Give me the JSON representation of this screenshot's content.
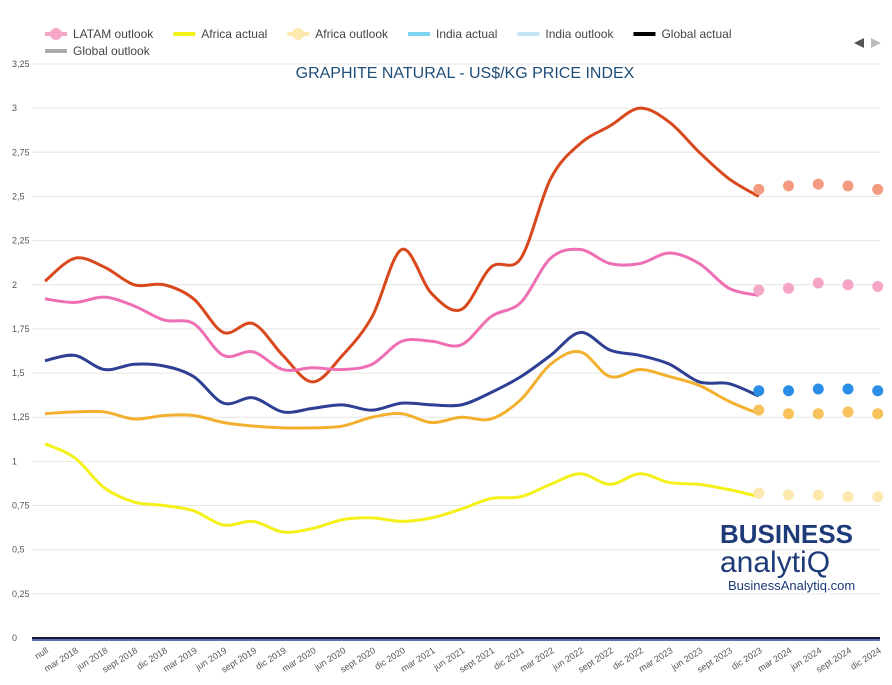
{
  "chart_data": {
    "type": "line",
    "title": "GRAPHITE NATURAL - US$/KG PRICE INDEX",
    "categories": [
      "null",
      "mar 2018",
      "jun 2018",
      "sept 2018",
      "dic 2018",
      "mar 2019",
      "jun 2019",
      "sept 2019",
      "dic 2019",
      "mar 2020",
      "jun 2020",
      "sept 2020",
      "dic 2020",
      "mar 2021",
      "jun 2021",
      "sept 2021",
      "dic 2021",
      "mar 2022",
      "jun 2022",
      "sept 2022",
      "dic 2022",
      "mar 2023",
      "jun 2023",
      "sept 2023",
      "dic 2023",
      "mar 2024",
      "jun 2024",
      "sept 2024",
      "dic 2024"
    ],
    "ylim": [
      0,
      3.25
    ],
    "yticks": [
      0,
      {
        "value": 0.25,
        "label": "0,25"
      },
      {
        "value": 0.5,
        "label": "0,5"
      },
      {
        "value": 0.75,
        "label": "0,75"
      },
      1,
      {
        "value": 1.25,
        "label": "1,25"
      },
      {
        "value": 1.5,
        "label": "1,5"
      },
      {
        "value": 1.75,
        "label": "1,75"
      },
      2,
      {
        "value": 2.25,
        "label": "2,25"
      },
      {
        "value": 2.5,
        "label": "2,5"
      },
      {
        "value": 2.75,
        "label": "2,75"
      },
      3,
      {
        "value": 3.25,
        "label": "3,25"
      }
    ],
    "grid": true,
    "legend": "top-left",
    "series": [
      {
        "color": "#d9481c",
        "style": "line",
        "values": [
          2.02,
          2.15,
          2.1,
          2.0,
          2.0,
          1.92,
          1.73,
          1.78,
          1.6,
          1.45,
          1.6,
          1.82,
          2.2,
          1.95,
          1.86,
          2.1,
          2.15,
          2.6,
          2.8,
          2.9,
          3.0,
          2.92,
          2.75,
          2.6,
          2.5,
          null,
          null,
          null,
          null
        ]
      },
      {
        "color": "#f49a80",
        "style": "dots",
        "values": [
          null,
          null,
          null,
          null,
          null,
          null,
          null,
          null,
          null,
          null,
          null,
          null,
          null,
          null,
          null,
          null,
          null,
          null,
          null,
          null,
          null,
          null,
          null,
          null,
          2.54,
          2.56,
          2.57,
          2.56,
          2.54
        ]
      },
      {
        "color": "#ee6fb4",
        "style": "line",
        "values": [
          1.92,
          1.9,
          1.93,
          1.88,
          1.8,
          1.78,
          1.6,
          1.62,
          1.52,
          1.53,
          1.52,
          1.55,
          1.68,
          1.68,
          1.66,
          1.82,
          1.9,
          2.15,
          2.2,
          2.12,
          2.12,
          2.18,
          2.12,
          1.98,
          1.94,
          null,
          null,
          null,
          null
        ]
      },
      {
        "name": "LATAM outlook",
        "color": "#f5a6c6",
        "style": "dots",
        "values": [
          null,
          null,
          null,
          null,
          null,
          null,
          null,
          null,
          null,
          null,
          null,
          null,
          null,
          null,
          null,
          null,
          null,
          null,
          null,
          null,
          null,
          null,
          null,
          null,
          1.97,
          1.98,
          2.01,
          2.0,
          1.99
        ]
      },
      {
        "name": "Africa actual",
        "color": "#f4f01a",
        "style": "line",
        "values": [
          1.1,
          1.02,
          0.85,
          0.77,
          0.75,
          0.72,
          0.64,
          0.66,
          0.6,
          0.62,
          0.67,
          0.68,
          0.66,
          0.68,
          0.73,
          0.79,
          0.8,
          0.87,
          0.93,
          0.87,
          0.93,
          0.88,
          0.87,
          0.84,
          0.8,
          null,
          null,
          null,
          null
        ]
      },
      {
        "name": "Africa outlook",
        "color": "#fde9b0",
        "style": "dots",
        "values": [
          null,
          null,
          null,
          null,
          null,
          null,
          null,
          null,
          null,
          null,
          null,
          null,
          null,
          null,
          null,
          null,
          null,
          null,
          null,
          null,
          null,
          null,
          null,
          null,
          0.82,
          0.81,
          0.81,
          0.8,
          0.8
        ]
      },
      {
        "name": "India actual",
        "color": "#7fd3ee",
        "style": "line",
        "values": [
          null,
          null,
          null,
          null,
          null,
          null,
          null,
          null,
          null,
          null,
          null,
          null,
          null,
          null,
          null,
          null,
          null,
          null,
          null,
          null,
          null,
          null,
          null,
          null,
          null,
          null,
          null,
          null,
          null
        ]
      },
      {
        "name": "India outlook",
        "color": "#c4e6f4",
        "style": "line",
        "values": [
          null,
          null,
          null,
          null,
          null,
          null,
          null,
          null,
          null,
          null,
          null,
          null,
          null,
          null,
          null,
          null,
          null,
          null,
          null,
          null,
          null,
          null,
          null,
          null,
          null,
          null,
          null,
          null,
          null
        ]
      },
      {
        "name": "Global actual",
        "color": "#000000",
        "style": "line",
        "values": [
          null,
          null,
          null,
          null,
          null,
          null,
          null,
          null,
          null,
          null,
          null,
          null,
          null,
          null,
          null,
          null,
          null,
          null,
          null,
          null,
          null,
          null,
          null,
          null,
          null,
          null,
          null,
          null,
          null
        ]
      },
      {
        "name": "Global outlook",
        "color": "#aaaaaa",
        "style": "line",
        "values": [
          null,
          null,
          null,
          null,
          null,
          null,
          null,
          null,
          null,
          null,
          null,
          null,
          null,
          null,
          null,
          null,
          null,
          null,
          null,
          null,
          null,
          null,
          null,
          null,
          null,
          null,
          null,
          null,
          null
        ]
      },
      {
        "color": "#2e3f94",
        "style": "line",
        "values": [
          1.57,
          1.6,
          1.52,
          1.55,
          1.54,
          1.48,
          1.33,
          1.36,
          1.28,
          1.3,
          1.32,
          1.29,
          1.33,
          1.32,
          1.32,
          1.39,
          1.48,
          1.6,
          1.73,
          1.63,
          1.6,
          1.55,
          1.45,
          1.44,
          1.37,
          null,
          null,
          null,
          null
        ]
      },
      {
        "color": "#2a8ee6",
        "style": "dots",
        "values": [
          null,
          null,
          null,
          null,
          null,
          null,
          null,
          null,
          null,
          null,
          null,
          null,
          null,
          null,
          null,
          null,
          null,
          null,
          null,
          null,
          null,
          null,
          null,
          null,
          1.4,
          1.4,
          1.41,
          1.41,
          1.4
        ]
      },
      {
        "color": "#f3b02e",
        "style": "line",
        "values": [
          1.27,
          1.28,
          1.28,
          1.24,
          1.26,
          1.26,
          1.22,
          1.2,
          1.19,
          1.19,
          1.2,
          1.25,
          1.27,
          1.22,
          1.25,
          1.24,
          1.35,
          1.55,
          1.62,
          1.48,
          1.52,
          1.48,
          1.43,
          1.34,
          1.27,
          null,
          null,
          null,
          null
        ]
      },
      {
        "color": "#f8c25a",
        "style": "dots",
        "values": [
          null,
          null,
          null,
          null,
          null,
          null,
          null,
          null,
          null,
          null,
          null,
          null,
          null,
          null,
          null,
          null,
          null,
          null,
          null,
          null,
          null,
          null,
          null,
          null,
          1.29,
          1.27,
          1.27,
          1.28,
          1.27
        ]
      }
    ]
  },
  "logo": {
    "top": "BUSINESS",
    "bottom": "analytiQ",
    "url": "BusinessAnalytiq.com"
  }
}
